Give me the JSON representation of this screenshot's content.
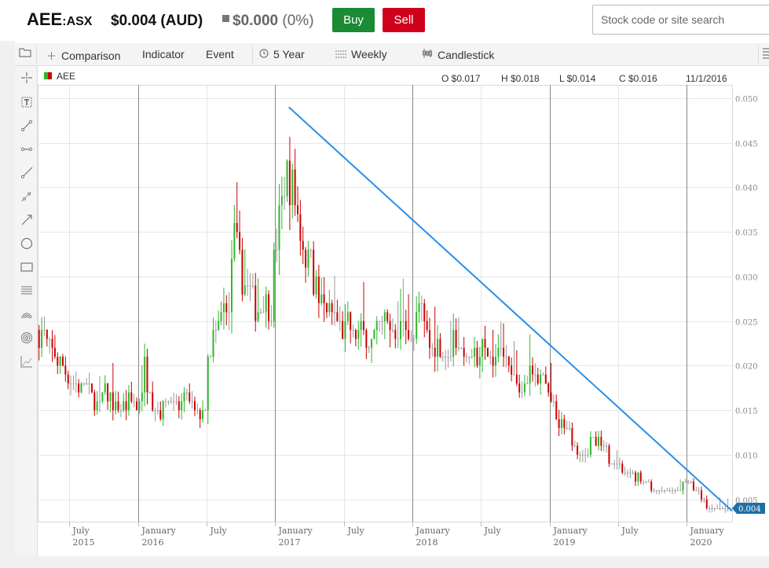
{
  "header": {
    "ticker": "AEE",
    "exchange": ":ASX",
    "price": "$0.004 (AUD)",
    "change_value": "$0.000",
    "change_pct": "(0%)",
    "buy_label": "Buy",
    "sell_label": "Sell",
    "search_placeholder": "Stock code or site search"
  },
  "toolbar": {
    "comparison": "Comparison",
    "indicator": "Indicator",
    "event": "Event",
    "range": "5 Year",
    "interval": "Weekly",
    "style": "Candlestick"
  },
  "legend": {
    "symbol": "AEE",
    "open": "O $0.017",
    "high": "H $0.018",
    "low": "L $0.014",
    "close": "C $0.016",
    "date": "11/1/2016"
  },
  "colors": {
    "up": "#2eb82e",
    "down": "#cc0000",
    "flat": "#999999",
    "trendline": "#2a8fe8",
    "price_tag": "#1e6fa8"
  },
  "left_tools": [
    "select-icon",
    "crosshair-icon",
    "text-tool-icon",
    "line-tool-icon",
    "horizontal-line-icon",
    "ray-icon",
    "segment-icon",
    "arrow-icon",
    "ellipse-icon",
    "rectangle-icon",
    "fib-lines-icon",
    "arc-icon",
    "circle-icon",
    "measure-icon"
  ],
  "chart_data": {
    "type": "candlestick",
    "y_ticks": [
      "0.050",
      "0.045",
      "0.040",
      "0.035",
      "0.030",
      "0.025",
      "0.020",
      "0.015",
      "0.010",
      "0.005"
    ],
    "ylim": [
      0.0025,
      0.0515
    ],
    "x_labels": [
      {
        "month": "July",
        "year": "2015",
        "t": 2015.5
      },
      {
        "month": "January",
        "year": "2016",
        "t": 2016.0
      },
      {
        "month": "July",
        "year": "",
        "t": 2016.5
      },
      {
        "month": "January",
        "year": "2017",
        "t": 2017.0
      },
      {
        "month": "July",
        "year": "",
        "t": 2017.5
      },
      {
        "month": "January",
        "year": "2018",
        "t": 2018.0
      },
      {
        "month": "July",
        "year": "",
        "t": 2018.5
      },
      {
        "month": "January",
        "year": "2019",
        "t": 2019.0
      },
      {
        "month": "July",
        "year": "",
        "t": 2019.5
      },
      {
        "month": "January",
        "year": "2020",
        "t": 2020.0
      }
    ],
    "xlim": [
      2015.27,
      2020.33
    ],
    "last_price": "0.004",
    "trendline": {
      "from": {
        "t": 2017.1,
        "v": 0.049
      },
      "to": {
        "t": 2020.33,
        "v": 0.0037
      }
    },
    "path": [
      [
        2015.28,
        0.024
      ],
      [
        2015.35,
        0.022
      ],
      [
        2015.45,
        0.02
      ],
      [
        2015.52,
        0.018
      ],
      [
        2015.6,
        0.017
      ],
      [
        2015.7,
        0.016
      ],
      [
        2015.78,
        0.017
      ],
      [
        2015.85,
        0.015
      ],
      [
        2015.93,
        0.016
      ],
      [
        2016.0,
        0.015
      ],
      [
        2016.05,
        0.02
      ],
      [
        2016.1,
        0.016
      ],
      [
        2016.15,
        0.015
      ],
      [
        2016.22,
        0.016
      ],
      [
        2016.3,
        0.015
      ],
      [
        2016.38,
        0.016
      ],
      [
        2016.43,
        0.014
      ],
      [
        2016.48,
        0.016
      ],
      [
        2016.52,
        0.022
      ],
      [
        2016.58,
        0.024
      ],
      [
        2016.65,
        0.028
      ],
      [
        2016.7,
        0.035
      ],
      [
        2016.75,
        0.03
      ],
      [
        2016.82,
        0.028
      ],
      [
        2016.88,
        0.026
      ],
      [
        2016.95,
        0.027
      ],
      [
        2017.02,
        0.035
      ],
      [
        2017.08,
        0.042
      ],
      [
        2017.12,
        0.04
      ],
      [
        2017.18,
        0.036
      ],
      [
        2017.25,
        0.031
      ],
      [
        2017.32,
        0.027
      ],
      [
        2017.4,
        0.026
      ],
      [
        2017.5,
        0.024
      ],
      [
        2017.6,
        0.024
      ],
      [
        2017.7,
        0.023
      ],
      [
        2017.8,
        0.025
      ],
      [
        2017.9,
        0.024
      ],
      [
        2018.0,
        0.023
      ],
      [
        2018.05,
        0.027
      ],
      [
        2018.12,
        0.022
      ],
      [
        2018.2,
        0.022
      ],
      [
        2018.28,
        0.024
      ],
      [
        2018.36,
        0.022
      ],
      [
        2018.44,
        0.021
      ],
      [
        2018.52,
        0.022
      ],
      [
        2018.6,
        0.021
      ],
      [
        2018.68,
        0.02
      ],
      [
        2018.76,
        0.018
      ],
      [
        2018.84,
        0.019
      ],
      [
        2018.92,
        0.019
      ],
      [
        2019.0,
        0.016
      ],
      [
        2019.06,
        0.014
      ],
      [
        2019.12,
        0.012
      ],
      [
        2019.18,
        0.01
      ],
      [
        2019.26,
        0.011
      ],
      [
        2019.34,
        0.011
      ],
      [
        2019.42,
        0.01
      ],
      [
        2019.5,
        0.009
      ],
      [
        2019.6,
        0.008
      ],
      [
        2019.7,
        0.007
      ],
      [
        2019.78,
        0.006
      ],
      [
        2019.86,
        0.006
      ],
      [
        2019.94,
        0.006
      ],
      [
        2020.0,
        0.007
      ],
      [
        2020.06,
        0.006
      ],
      [
        2020.12,
        0.005
      ],
      [
        2020.18,
        0.004
      ],
      [
        2020.24,
        0.004
      ],
      [
        2020.32,
        0.004
      ]
    ]
  }
}
